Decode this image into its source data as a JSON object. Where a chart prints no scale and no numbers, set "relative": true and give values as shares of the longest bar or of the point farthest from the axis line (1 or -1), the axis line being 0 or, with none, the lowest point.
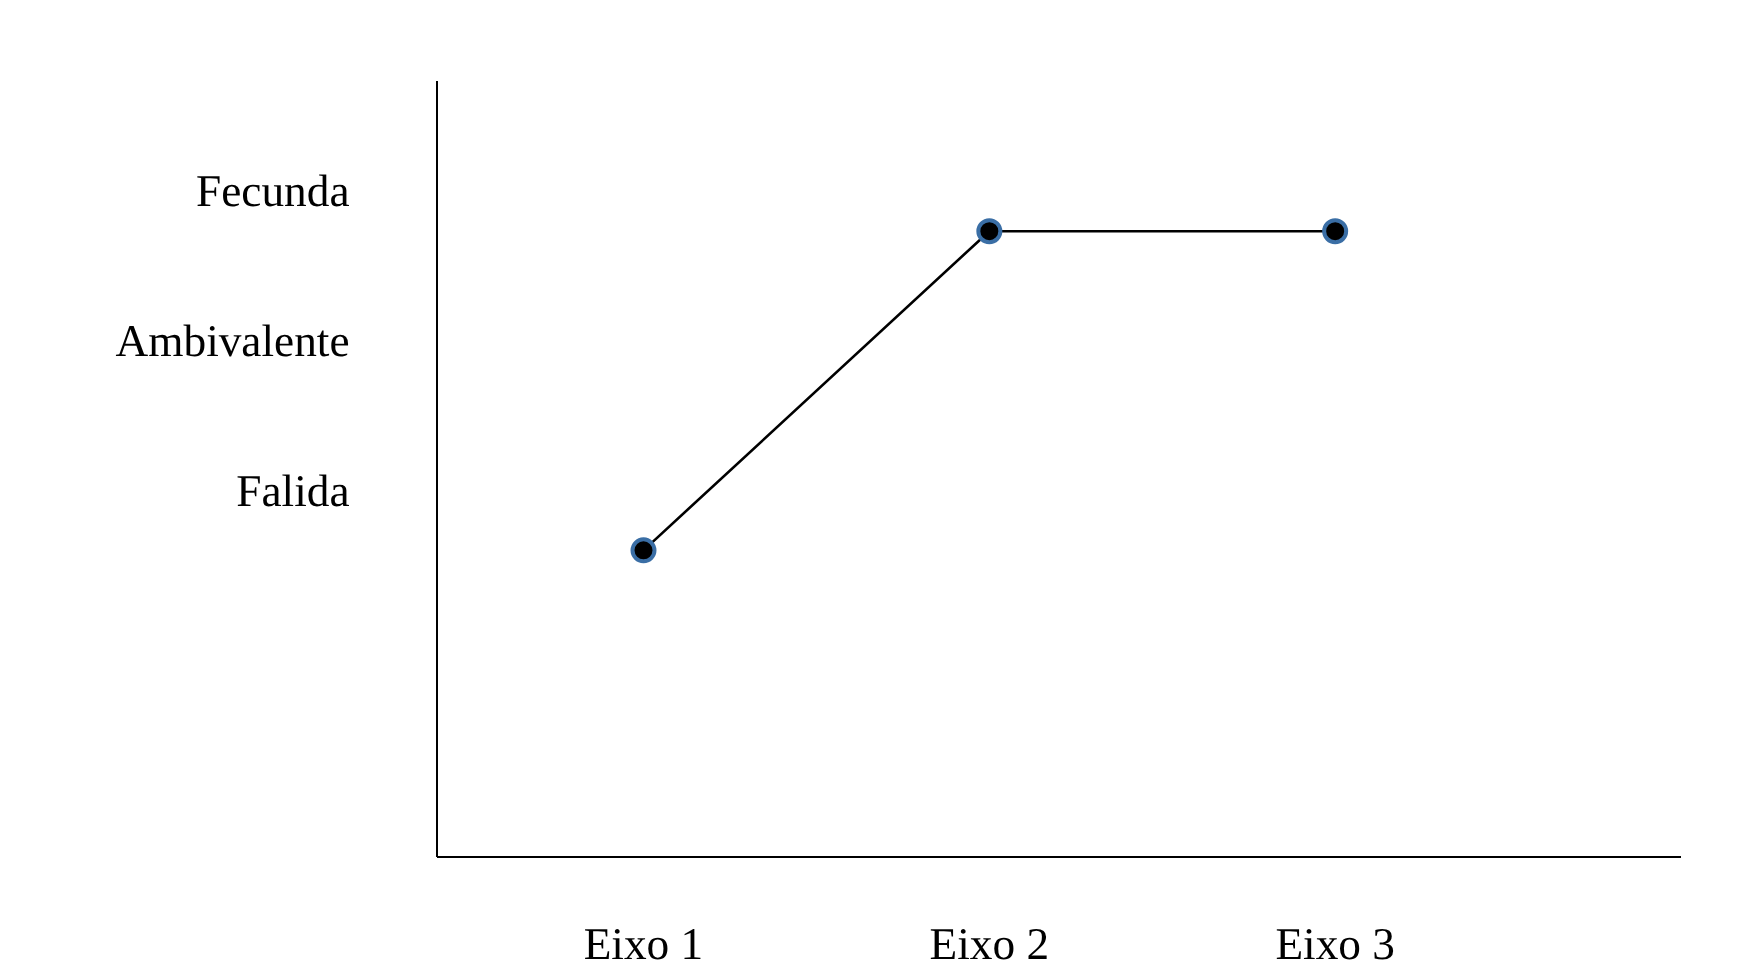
{
  "chart_data": {
    "type": "line",
    "categories": [
      "Eixo 1",
      "Eixo 2",
      "Eixo 3"
    ],
    "values": [
      0.49,
      1,
      1
    ],
    "relative": true,
    "color": "#000000",
    "marker": "circle",
    "line_style": "solid",
    "annotations": [
      "Falida",
      "Ambivalente",
      "Fecunda"
    ]
  }
}
